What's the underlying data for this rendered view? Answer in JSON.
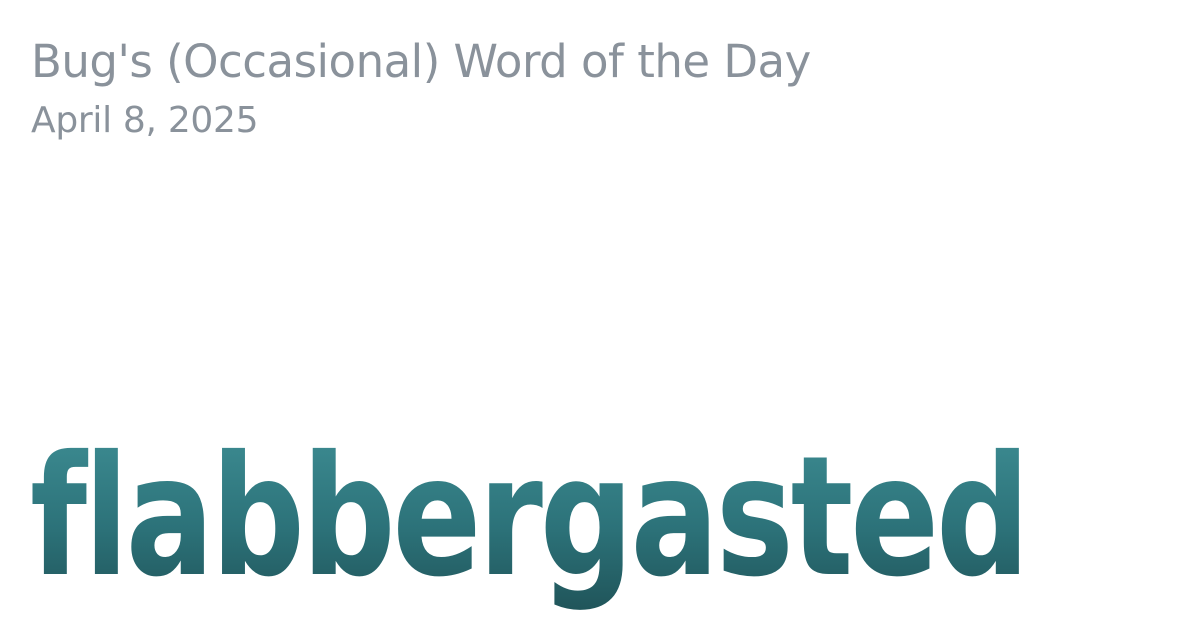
{
  "header": {
    "site_title": "Bug's (Occasional) Word of the Day",
    "date": "April 8, 2025"
  },
  "main": {
    "word": "flabbergasted"
  },
  "colors": {
    "muted_text": "#8a929b",
    "word_gradient_top": "#3f8f95",
    "word_gradient_bottom": "#1f5257",
    "background": "#ffffff"
  }
}
